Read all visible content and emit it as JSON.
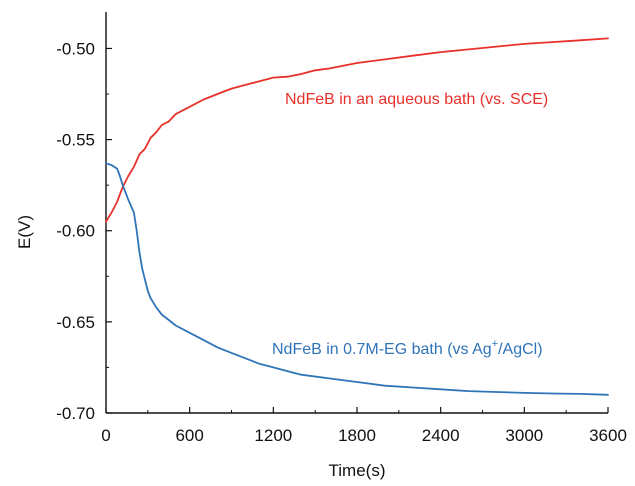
{
  "chart_data": {
    "type": "line",
    "xlabel": "Time(s)",
    "ylabel": "E(V)",
    "xlim": [
      0,
      3600
    ],
    "ylim": [
      -0.7,
      -0.48
    ],
    "xticks": [
      0,
      600,
      1200,
      1800,
      2400,
      3000,
      3600
    ],
    "xtick_labels": [
      "0",
      "600",
      "1200",
      "1800",
      "2400",
      "3000",
      "3600"
    ],
    "yticks": [
      -0.7,
      -0.65,
      -0.6,
      -0.55,
      -0.5
    ],
    "ytick_labels": [
      "-0.70",
      "-0.65",
      "-0.60",
      "-0.55",
      "-0.50"
    ],
    "grid": false,
    "legend": "none",
    "series": [
      {
        "color": "#e8312a",
        "x": [
          0,
          40,
          80,
          120,
          160,
          200,
          240,
          280,
          320,
          360,
          400,
          450,
          500,
          550,
          600,
          700,
          800,
          900,
          1000,
          1100,
          1200,
          1300,
          1400,
          1500,
          1600,
          1800,
          2000,
          2200,
          2400,
          2600,
          2800,
          3000,
          3200,
          3400,
          3600
        ],
        "y": [
          -0.595,
          -0.59,
          -0.584,
          -0.576,
          -0.57,
          -0.565,
          -0.558,
          -0.555,
          -0.549,
          -0.546,
          -0.542,
          -0.54,
          -0.536,
          -0.534,
          -0.532,
          -0.528,
          -0.525,
          -0.522,
          -0.52,
          -0.518,
          -0.516,
          -0.5155,
          -0.514,
          -0.512,
          -0.511,
          -0.508,
          -0.506,
          -0.504,
          -0.502,
          -0.5005,
          -0.499,
          -0.4975,
          -0.4965,
          -0.4955,
          -0.4945
        ]
      },
      {
        "color": "#2f74b8",
        "x": [
          0,
          40,
          80,
          100,
          120,
          160,
          200,
          220,
          240,
          260,
          280,
          300,
          320,
          360,
          400,
          450,
          500,
          600,
          700,
          800,
          900,
          1000,
          1100,
          1200,
          1300,
          1400,
          1600,
          1800,
          2000,
          2200,
          2400,
          2600,
          2800,
          3000,
          3200,
          3400,
          3600
        ],
        "y": [
          -0.563,
          -0.564,
          -0.566,
          -0.57,
          -0.575,
          -0.583,
          -0.59,
          -0.6,
          -0.612,
          -0.621,
          -0.627,
          -0.633,
          -0.637,
          -0.642,
          -0.646,
          -0.649,
          -0.652,
          -0.656,
          -0.66,
          -0.664,
          -0.667,
          -0.67,
          -0.673,
          -0.675,
          -0.677,
          -0.679,
          -0.681,
          -0.683,
          -0.685,
          -0.686,
          -0.687,
          -0.688,
          -0.6885,
          -0.689,
          -0.6893,
          -0.6895,
          -0.69
        ]
      }
    ],
    "annotations": [
      {
        "series": 0,
        "text_main": "NdFeB in an aqueous bath (vs. SCE)",
        "color": "#e8312a"
      },
      {
        "series": 1,
        "text_pre": "NdFeB in 0.7M-EG bath (vs Ag",
        "text_sup": "+",
        "text_post": "/AgCl)",
        "color": "#2f74b8"
      }
    ]
  }
}
